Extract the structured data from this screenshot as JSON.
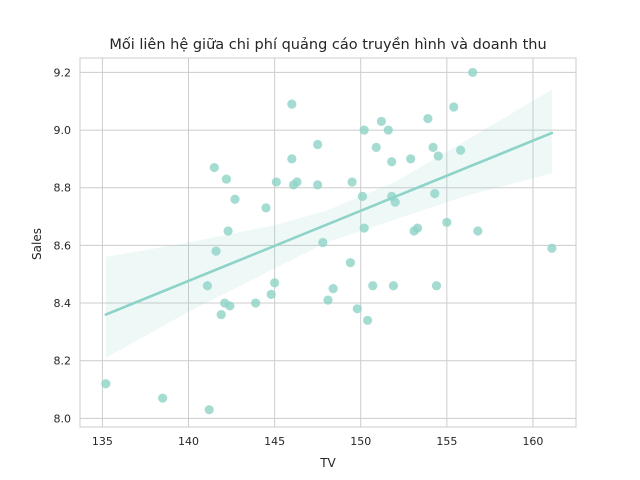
{
  "chart_data": {
    "type": "scatter",
    "title": "Mối liên hệ giữa chi phí quảng cáo truyền hình và doanh thu",
    "xlabel": "TV",
    "ylabel": "Sales",
    "xlim": [
      133.7,
      162.5
    ],
    "ylim": [
      7.97,
      9.25
    ],
    "xticks": [
      135,
      140,
      145,
      150,
      155,
      160
    ],
    "yticks": [
      8.0,
      8.2,
      8.4,
      8.6,
      8.8,
      9.0,
      9.2
    ],
    "grid": true,
    "color": "#8dd3c7",
    "points": [
      {
        "x": 135.2,
        "y": 8.12
      },
      {
        "x": 138.5,
        "y": 8.07
      },
      {
        "x": 141.2,
        "y": 8.03
      },
      {
        "x": 141.1,
        "y": 8.46
      },
      {
        "x": 141.5,
        "y": 8.87
      },
      {
        "x": 141.6,
        "y": 8.58
      },
      {
        "x": 141.9,
        "y": 8.36
      },
      {
        "x": 142.1,
        "y": 8.4
      },
      {
        "x": 142.2,
        "y": 8.83
      },
      {
        "x": 142.3,
        "y": 8.65
      },
      {
        "x": 142.4,
        "y": 8.39
      },
      {
        "x": 142.7,
        "y": 8.76
      },
      {
        "x": 143.9,
        "y": 8.4
      },
      {
        "x": 144.5,
        "y": 8.73
      },
      {
        "x": 144.8,
        "y": 8.43
      },
      {
        "x": 145.0,
        "y": 8.47
      },
      {
        "x": 145.1,
        "y": 8.82
      },
      {
        "x": 146.0,
        "y": 9.09
      },
      {
        "x": 146.0,
        "y": 8.9
      },
      {
        "x": 146.1,
        "y": 8.81
      },
      {
        "x": 146.3,
        "y": 8.82
      },
      {
        "x": 147.5,
        "y": 8.95
      },
      {
        "x": 147.5,
        "y": 8.81
      },
      {
        "x": 147.8,
        "y": 8.61
      },
      {
        "x": 148.1,
        "y": 8.41
      },
      {
        "x": 148.4,
        "y": 8.45
      },
      {
        "x": 149.4,
        "y": 8.54
      },
      {
        "x": 149.5,
        "y": 8.82
      },
      {
        "x": 149.8,
        "y": 8.38
      },
      {
        "x": 150.1,
        "y": 8.77
      },
      {
        "x": 150.2,
        "y": 9.0
      },
      {
        "x": 150.2,
        "y": 8.66
      },
      {
        "x": 150.4,
        "y": 8.34
      },
      {
        "x": 150.7,
        "y": 8.46
      },
      {
        "x": 150.9,
        "y": 8.94
      },
      {
        "x": 151.2,
        "y": 9.03
      },
      {
        "x": 151.6,
        "y": 9.0
      },
      {
        "x": 151.8,
        "y": 8.89
      },
      {
        "x": 151.8,
        "y": 8.77
      },
      {
        "x": 151.9,
        "y": 8.46
      },
      {
        "x": 152.0,
        "y": 8.75
      },
      {
        "x": 152.9,
        "y": 8.9
      },
      {
        "x": 153.1,
        "y": 8.65
      },
      {
        "x": 153.3,
        "y": 8.66
      },
      {
        "x": 153.9,
        "y": 9.04
      },
      {
        "x": 154.2,
        "y": 8.94
      },
      {
        "x": 154.3,
        "y": 8.78
      },
      {
        "x": 154.4,
        "y": 8.46
      },
      {
        "x": 154.5,
        "y": 8.91
      },
      {
        "x": 155.0,
        "y": 8.68
      },
      {
        "x": 155.4,
        "y": 9.08
      },
      {
        "x": 155.8,
        "y": 8.93
      },
      {
        "x": 156.5,
        "y": 9.2
      },
      {
        "x": 156.8,
        "y": 8.65
      },
      {
        "x": 161.1,
        "y": 8.59
      }
    ],
    "regression": {
      "line": [
        {
          "x": 135.2,
          "y": 8.36
        },
        {
          "x": 161.1,
          "y": 8.99
        }
      ],
      "ci_upper": [
        {
          "x": 135.2,
          "y": 8.56
        },
        {
          "x": 140,
          "y": 8.61
        },
        {
          "x": 145,
          "y": 8.67
        },
        {
          "x": 148,
          "y": 8.72
        },
        {
          "x": 152,
          "y": 8.82
        },
        {
          "x": 156,
          "y": 8.96
        },
        {
          "x": 161.1,
          "y": 9.14
        }
      ],
      "ci_lower": [
        {
          "x": 135.2,
          "y": 8.21
        },
        {
          "x": 140,
          "y": 8.37
        },
        {
          "x": 145,
          "y": 8.52
        },
        {
          "x": 148,
          "y": 8.61
        },
        {
          "x": 152,
          "y": 8.69
        },
        {
          "x": 156,
          "y": 8.77
        },
        {
          "x": 161.1,
          "y": 8.85
        }
      ]
    }
  }
}
